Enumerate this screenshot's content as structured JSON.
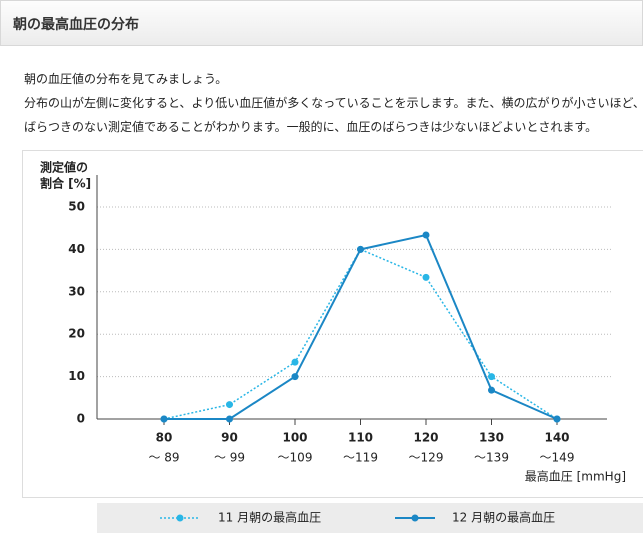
{
  "header": {
    "title": "朝の最高血圧の分布"
  },
  "intro": {
    "lines": [
      "朝の血圧値の分布を見てみましょう。",
      "分布の山が左側に変化すると、より低い血圧値が多くなっていることを示します。また、横の広がりが小さいほど、",
      "ばらつきのない測定値であることがわかります。一般的に、血圧のばらつきは少ないほどよいとされます。"
    ]
  },
  "chart_data": {
    "type": "line",
    "y_label": [
      "測定値の",
      "割合 [%]"
    ],
    "x_label": "最高血圧 [mmHg]",
    "categories": [
      [
        "80",
        "～ 89"
      ],
      [
        "90",
        "～ 99"
      ],
      [
        "100",
        "～109"
      ],
      [
        "110",
        "～119"
      ],
      [
        "120",
        "～129"
      ],
      [
        "130",
        "～139"
      ],
      [
        "140",
        "～149"
      ]
    ],
    "ylim": [
      0,
      50
    ],
    "yticks": [
      0,
      10,
      20,
      30,
      40,
      50
    ],
    "grid": true,
    "series": [
      {
        "name": "11 月朝の最高血圧",
        "color": "#29b6e6",
        "dash": true,
        "values": [
          0,
          3.4,
          13.4,
          40,
          33.4,
          10,
          0
        ]
      },
      {
        "name": "12 月朝の最高血圧",
        "color": "#1b87c5",
        "dash": false,
        "values": [
          0,
          0,
          10,
          40,
          43.4,
          6.8,
          0
        ]
      }
    ]
  }
}
